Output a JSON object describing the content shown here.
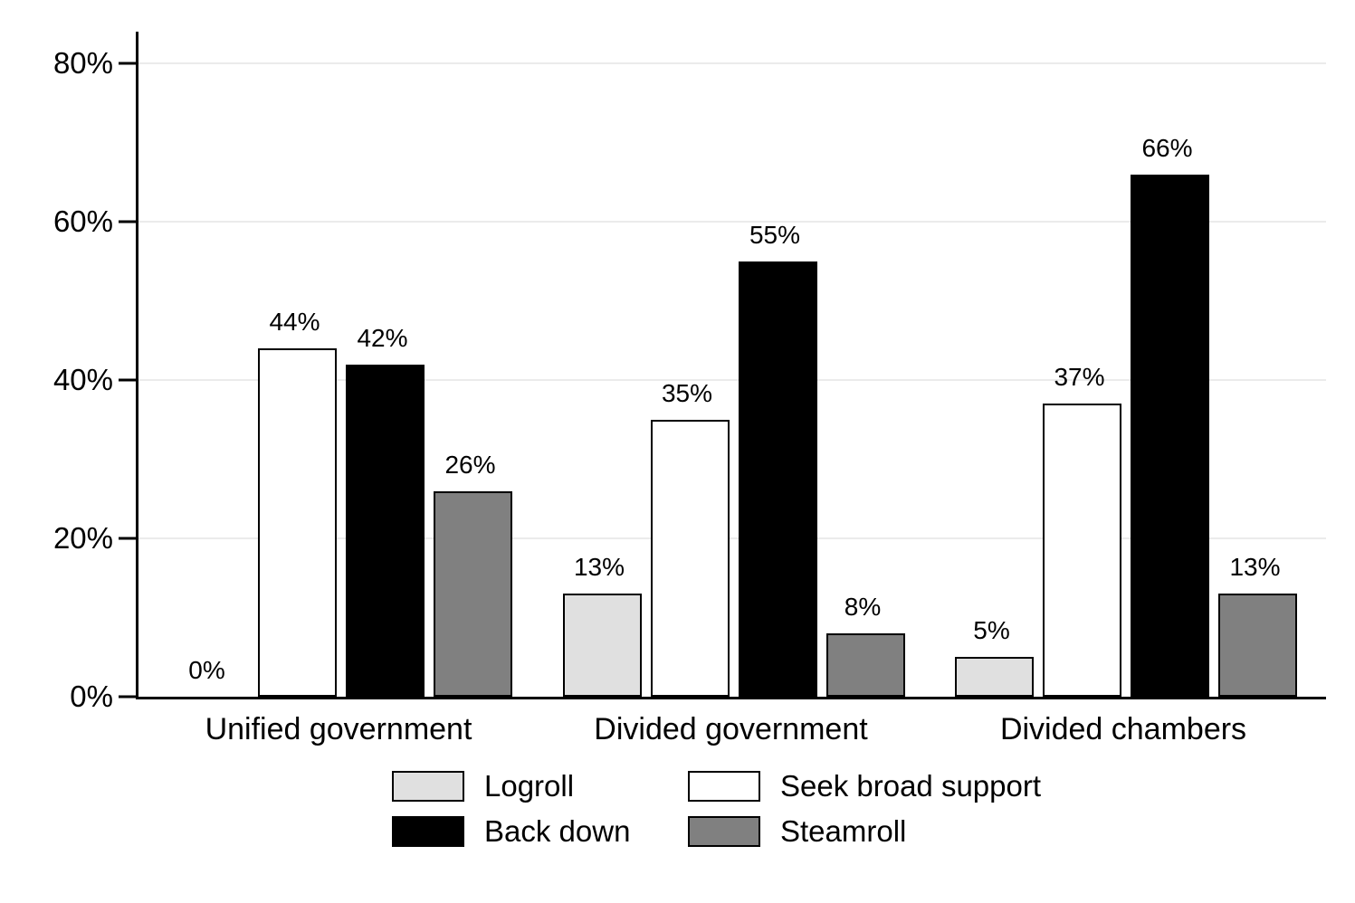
{
  "chart_data": {
    "type": "bar",
    "title": "",
    "xlabel": "",
    "ylabel": "",
    "categories": [
      "Unified government",
      "Divided government",
      "Divided chambers"
    ],
    "series": [
      {
        "name": "Logroll",
        "color": "#e0e0e0",
        "values": [
          0,
          13,
          5
        ],
        "labels": [
          "0%",
          "13%",
          "5%"
        ]
      },
      {
        "name": "Seek broad support",
        "color": "#ffffff",
        "values": [
          44,
          35,
          37
        ],
        "labels": [
          "44%",
          "35%",
          "37%"
        ]
      },
      {
        "name": "Back down",
        "color": "#000000",
        "values": [
          42,
          55,
          66
        ],
        "labels": [
          "42%",
          "55%",
          "66%"
        ]
      },
      {
        "name": "Steamroll",
        "color": "#808080",
        "values": [
          26,
          8,
          13
        ],
        "labels": [
          "26%",
          "8%",
          "13%"
        ]
      }
    ],
    "y_axis": {
      "tick_labels": [
        "0%",
        "20%",
        "40%",
        "60%",
        "80%"
      ],
      "tick_values": [
        0,
        20,
        40,
        60,
        80
      ],
      "min": 0,
      "max": 80,
      "grid": true
    },
    "legend": {
      "position": "bottom",
      "rows": [
        [
          "Logroll",
          "Seek broad support"
        ],
        [
          "Back down",
          "Steamroll"
        ]
      ]
    }
  }
}
